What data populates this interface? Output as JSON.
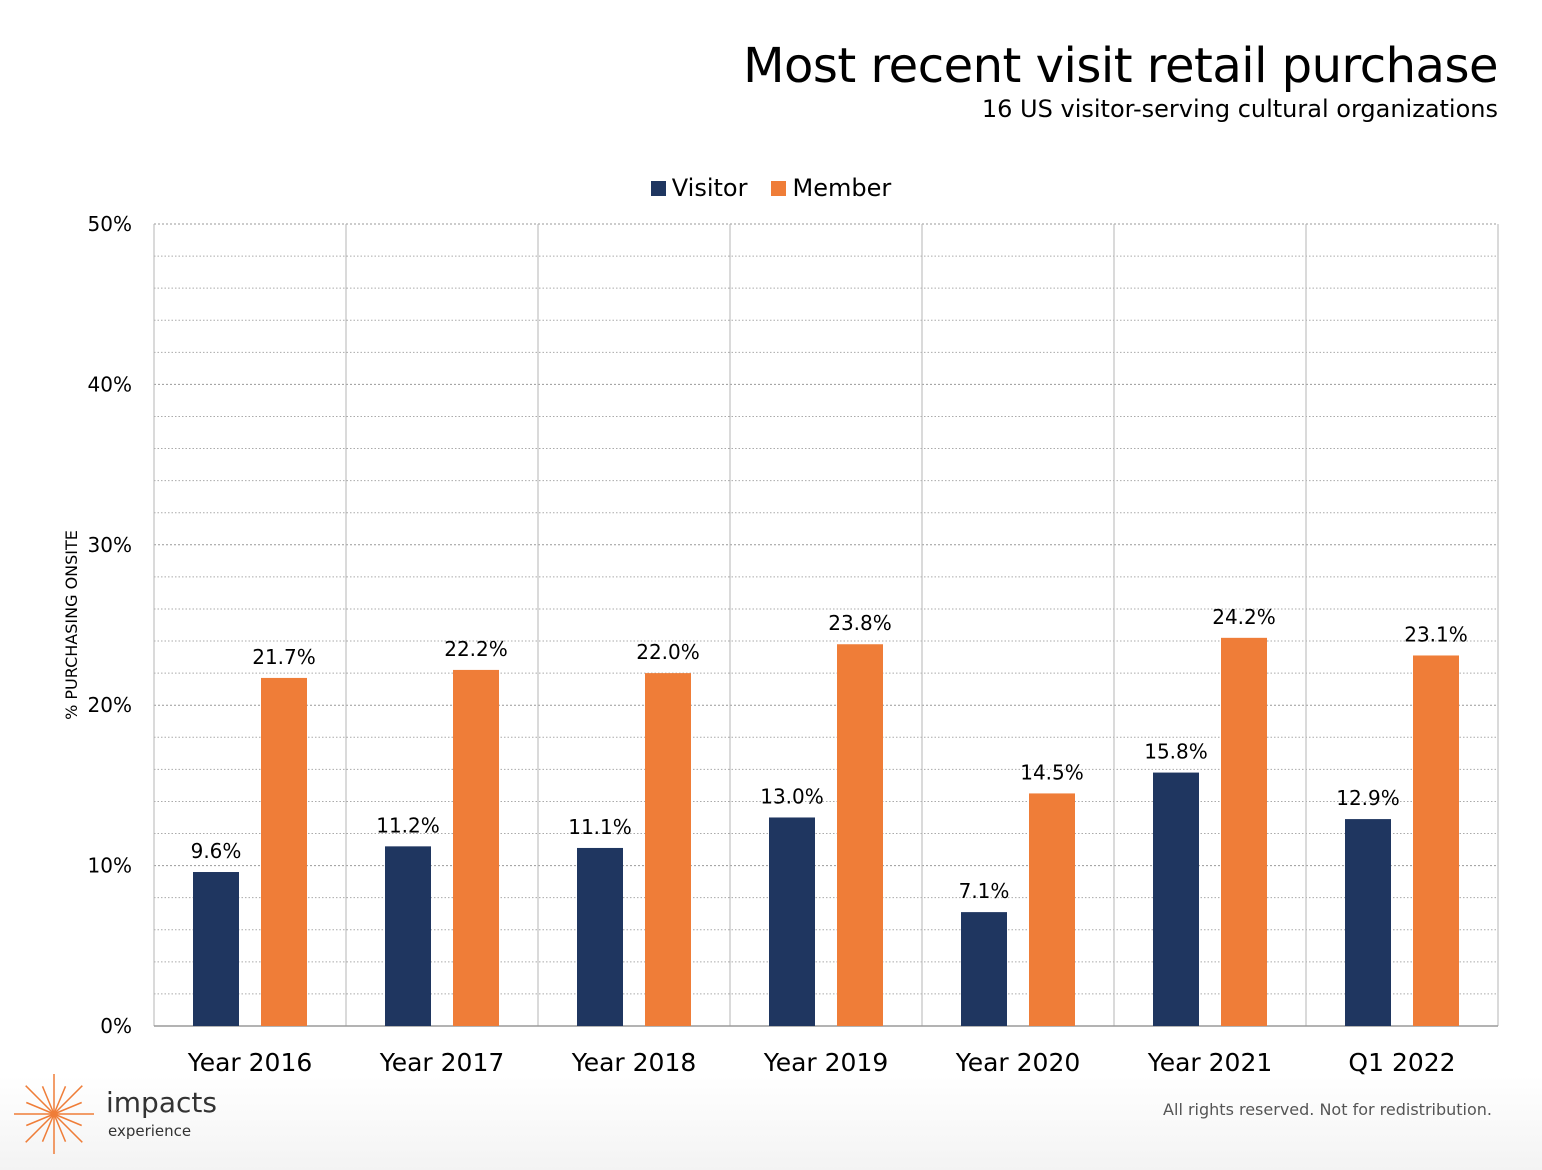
{
  "chart_data": {
    "type": "bar",
    "title": "Most recent visit retail purchase",
    "subtitle": "16 US visitor-serving cultural organizations",
    "ylabel": "% PURCHASING ONSITE",
    "xlabel": "",
    "ylim": [
      0,
      50
    ],
    "yticks": [
      {
        "value": 0,
        "label": "0%"
      },
      {
        "value": 10,
        "label": "10%"
      },
      {
        "value": 20,
        "label": "20%"
      },
      {
        "value": 30,
        "label": "30%"
      },
      {
        "value": 40,
        "label": "40%"
      },
      {
        "value": 50,
        "label": "50%"
      }
    ],
    "grid": true,
    "legend_position": "top-center",
    "categories": [
      "Year 2016",
      "Year 2017",
      "Year 2018",
      "Year 2019",
      "Year 2020",
      "Year 2021",
      "Q1 2022"
    ],
    "series": [
      {
        "name": "Visitor",
        "color": "#1f3660",
        "values": [
          9.6,
          11.2,
          11.1,
          13.0,
          7.1,
          15.8,
          12.9
        ],
        "labels": [
          "9.6%",
          "11.2%",
          "11.1%",
          "13.0%",
          "7.1%",
          "15.8%",
          "12.9%"
        ]
      },
      {
        "name": "Member",
        "color": "#ef7d38",
        "values": [
          21.7,
          22.2,
          22.0,
          23.8,
          14.5,
          24.2,
          23.1
        ],
        "labels": [
          "21.7%",
          "22.2%",
          "22.0%",
          "23.8%",
          "14.5%",
          "24.2%",
          "23.1%"
        ]
      }
    ]
  },
  "footer": {
    "rights": "All rights reserved. Not for redistribution."
  },
  "logo": {
    "name": "impacts",
    "sub": "experience",
    "icon": "starburst-icon",
    "color": "#ef7d38"
  }
}
